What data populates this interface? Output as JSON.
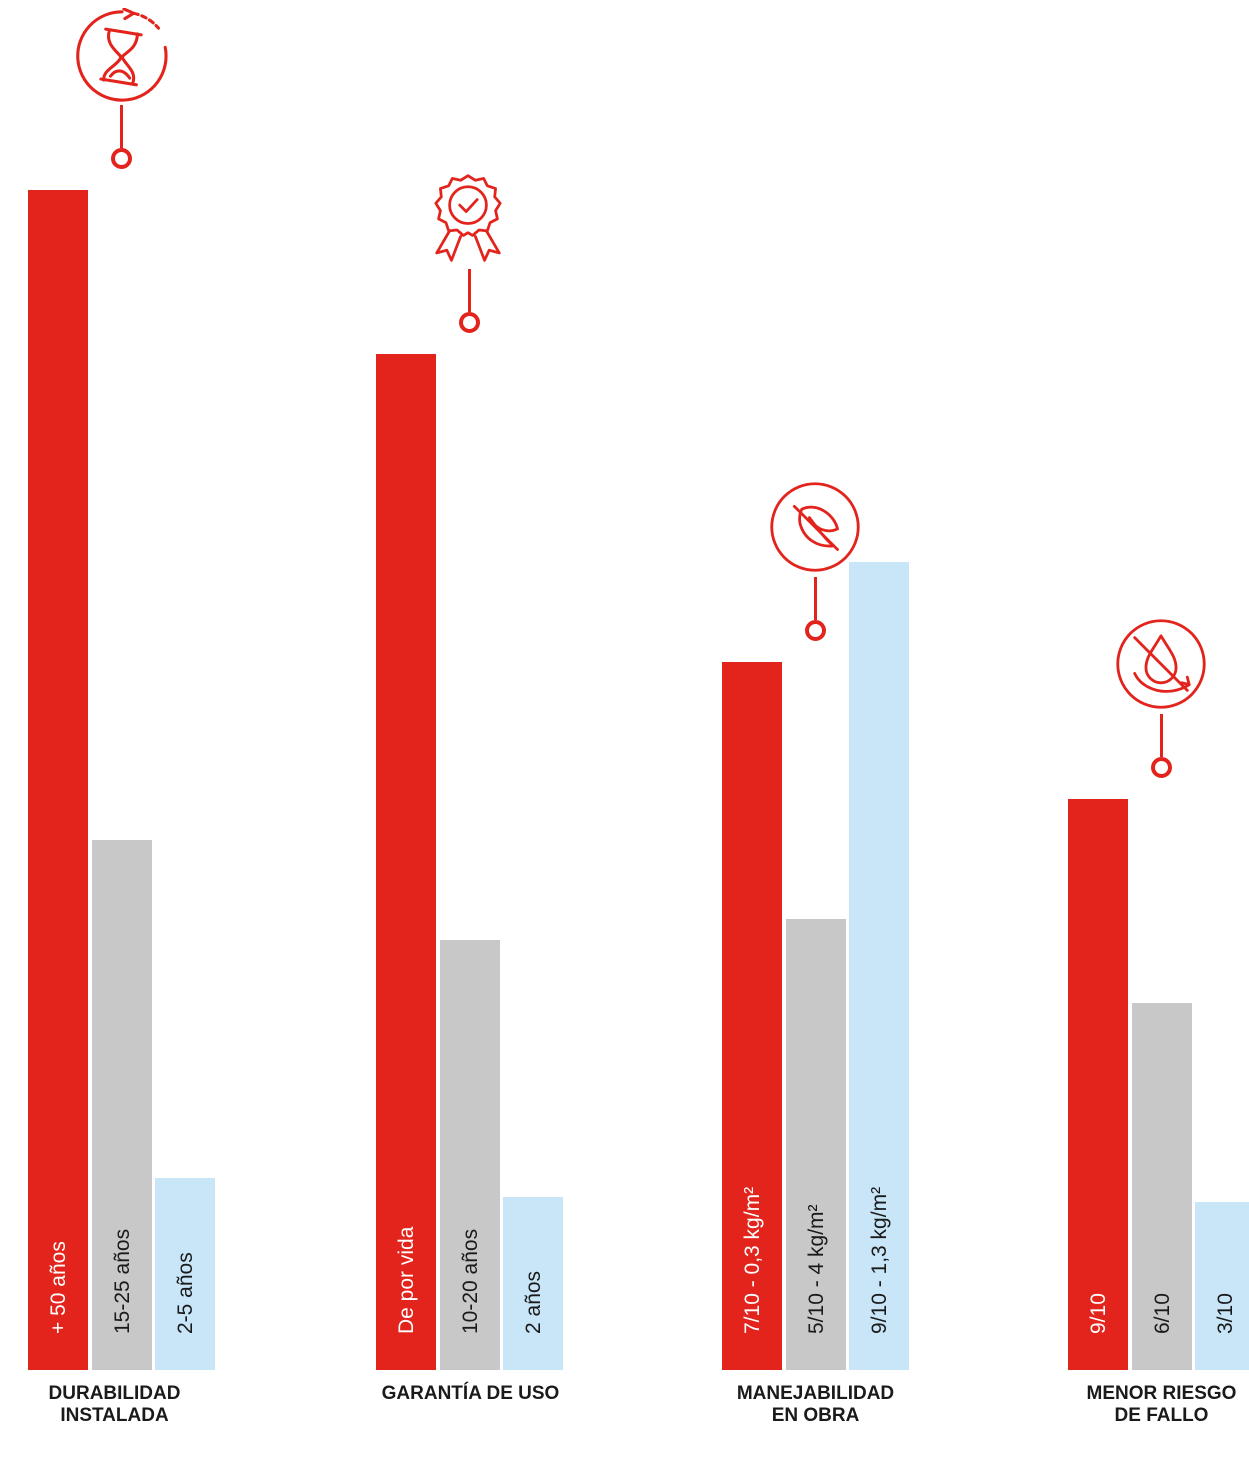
{
  "colors": {
    "red": "#e2241c",
    "gray": "#c8c8c8",
    "light_blue": "#c8e6f8"
  },
  "chart_data": {
    "type": "bar",
    "groups": [
      {
        "title": [
          "DURABILIDAD",
          "INSTALADA"
        ],
        "icon": "hourglass-icon",
        "bars": [
          {
            "label": "+ 50 años",
            "value": 1.0,
            "color": "red",
            "text_color": "#ffffff"
          },
          {
            "label": "15-25 años",
            "value": 0.449,
            "color": "gray",
            "text_color": "#1a1a1a"
          },
          {
            "label": "2-5 años",
            "value": 0.163,
            "color": "light_blue",
            "text_color": "#1a1a1a"
          }
        ]
      },
      {
        "title": [
          "GARANTÍA DE USO"
        ],
        "icon": "award-icon",
        "bars": [
          {
            "label": "De por vida",
            "value": 0.861,
            "color": "red",
            "text_color": "#ffffff"
          },
          {
            "label": "10-20 años",
            "value": 0.364,
            "color": "gray",
            "text_color": "#1a1a1a"
          },
          {
            "label": "2 años",
            "value": 0.147,
            "color": "light_blue",
            "text_color": "#1a1a1a"
          }
        ]
      },
      {
        "title": [
          "MANEJABILIDAD",
          "EN OBRA"
        ],
        "icon": "feather-icon",
        "bars": [
          {
            "label": "7/10  -  0,3 kg/m²",
            "value": 0.6,
            "color": "red",
            "text_color": "#ffffff"
          },
          {
            "label": "5/10  -  4 kg/m²",
            "value": 0.382,
            "color": "gray",
            "text_color": "#1a1a1a"
          },
          {
            "label": "9/10  -  1,3 kg/m²",
            "value": 0.685,
            "color": "light_blue",
            "text_color": "#1a1a1a"
          }
        ]
      },
      {
        "title": [
          "MENOR RIESGO",
          "DE FALLO"
        ],
        "icon": "no-leak-icon",
        "bars": [
          {
            "label": "9/10",
            "value": 0.484,
            "color": "red",
            "text_color": "#ffffff"
          },
          {
            "label": "6/10",
            "value": 0.311,
            "color": "gray",
            "text_color": "#1a1a1a"
          },
          {
            "label": "3/10",
            "value": 0.142,
            "color": "light_blue",
            "text_color": "#1a1a1a"
          }
        ]
      }
    ]
  }
}
